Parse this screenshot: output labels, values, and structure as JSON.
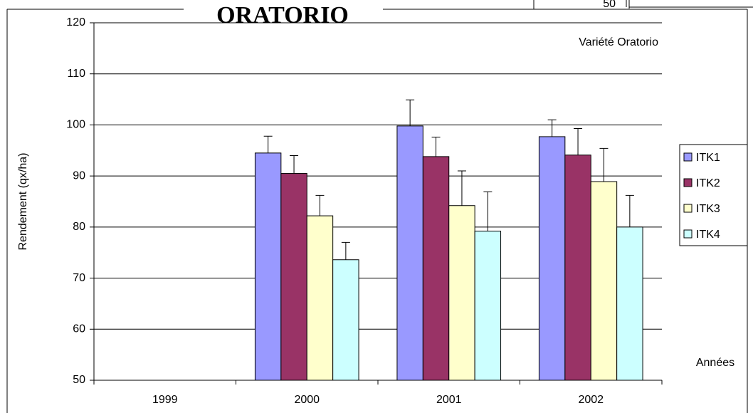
{
  "chart_data": {
    "type": "bar",
    "title": "ORATORIO",
    "annotation": "Variété Oratorio",
    "background_label": "50",
    "ylabel": "Rendement (qx/ha)",
    "xlabel": "Années",
    "categories": [
      "1999",
      "2000",
      "2001",
      "2002"
    ],
    "series": [
      {
        "name": "ITK1",
        "color": "#9999ff",
        "values": [
          null,
          94.5,
          99.8,
          97.7
        ],
        "errors": [
          null,
          3.3,
          5.1,
          3.3
        ]
      },
      {
        "name": "ITK2",
        "color": "#993366",
        "values": [
          null,
          90.5,
          93.8,
          94.1
        ],
        "errors": [
          null,
          3.5,
          3.8,
          5.2
        ]
      },
      {
        "name": "ITK3",
        "color": "#ffffcc",
        "values": [
          null,
          82.2,
          84.2,
          88.9
        ],
        "errors": [
          null,
          4.0,
          6.8,
          6.5
        ]
      },
      {
        "name": "ITK4",
        "color": "#ccffff",
        "values": [
          null,
          73.6,
          79.2,
          80.0
        ],
        "errors": [
          null,
          3.4,
          7.7,
          6.2
        ]
      }
    ],
    "ylim": [
      50,
      120
    ],
    "yticks": [
      50,
      60,
      70,
      80,
      90,
      100,
      110,
      120
    ],
    "grid": true,
    "legend": "right"
  }
}
